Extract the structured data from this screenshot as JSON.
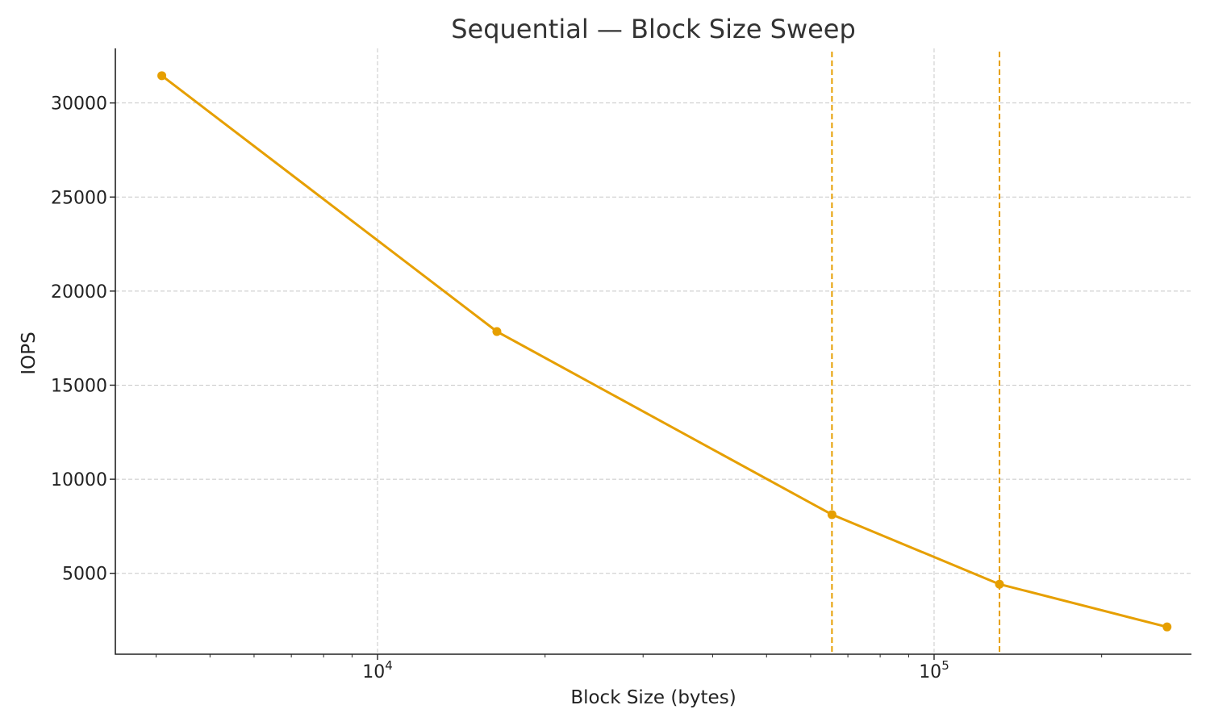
{
  "chart_data": {
    "type": "line",
    "title": "Sequential — Block Size Sweep",
    "xlabel": "Block Size (bytes)",
    "ylabel": "IOPS",
    "x_scale": "log",
    "x_ticks": [
      {
        "value": 10000,
        "base": "10",
        "exp": "4"
      },
      {
        "value": 100000,
        "base": "10",
        "exp": "5"
      }
    ],
    "y_ticks": [
      5000,
      10000,
      15000,
      20000,
      25000,
      30000
    ],
    "grid": true,
    "color": "#E69F00",
    "series": [
      {
        "x": [
          4096,
          16384,
          65536,
          131072,
          262144
        ],
        "y": [
          31450,
          17850,
          8120,
          4420,
          2150
        ]
      }
    ],
    "vertical_lines": [
      65536,
      131072
    ]
  }
}
